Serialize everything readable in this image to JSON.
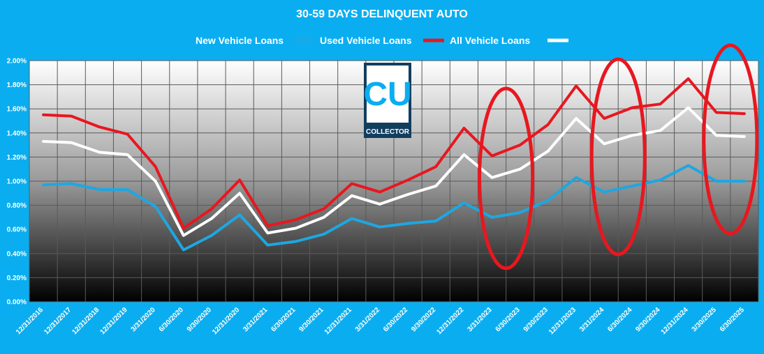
{
  "chart_data": {
    "type": "line",
    "title": "30-59 DAYS DELINQUENT AUTO",
    "legend_position": "top",
    "grid": true,
    "ylim": [
      0,
      2.0
    ],
    "y_ticks": [
      "0.00%",
      "0.20%",
      "0.40%",
      "0.60%",
      "0.80%",
      "1.00%",
      "1.20%",
      "1.40%",
      "1.60%",
      "1.80%",
      "2.00%"
    ],
    "categories": [
      "12/31/2016",
      "12/31/2017",
      "12/31/2018",
      "12/31/2019",
      "3/31/2020",
      "6/30/2020",
      "9/30/2020",
      "12/31/2020",
      "3/31/2021",
      "6/30/2021",
      "9/30/2021",
      "12/31/2021",
      "3/31/2022",
      "6/30/2022",
      "9/30/2022",
      "12/31/2022",
      "3/31/2023",
      "6/30/2023",
      "9/30/2023",
      "12/31/2023",
      "3/31/2024",
      "6/30/2024",
      "9/30/2024",
      "12/31/2024",
      "3/30/2025",
      "6/30/2025"
    ],
    "series": [
      {
        "name": "New Vehicle Loans",
        "color": "#1ea7e1",
        "values": [
          0.97,
          0.98,
          0.93,
          0.93,
          0.79,
          0.43,
          0.55,
          0.72,
          0.47,
          0.5,
          0.56,
          0.69,
          0.62,
          0.65,
          0.67,
          0.82,
          0.7,
          0.74,
          0.84,
          1.03,
          0.91,
          0.96,
          1.01,
          1.13,
          1.0,
          1.0
        ]
      },
      {
        "name": "Used Vehicle Loans",
        "color": "#e8171f",
        "values": [
          1.55,
          1.54,
          1.45,
          1.39,
          1.12,
          0.61,
          0.77,
          1.01,
          0.63,
          0.68,
          0.77,
          0.98,
          0.91,
          1.01,
          1.12,
          1.44,
          1.21,
          1.3,
          1.47,
          1.79,
          1.52,
          1.61,
          1.64,
          1.85,
          1.57,
          1.56
        ]
      },
      {
        "name": "All Vehicle Loans",
        "color": "#ffffff",
        "values": [
          1.33,
          1.32,
          1.24,
          1.22,
          1.0,
          0.55,
          0.69,
          0.9,
          0.57,
          0.61,
          0.7,
          0.88,
          0.81,
          0.89,
          0.96,
          1.22,
          1.03,
          1.1,
          1.25,
          1.52,
          1.31,
          1.38,
          1.42,
          1.61,
          1.38,
          1.37
        ]
      }
    ],
    "annotations": [
      {
        "type": "ellipse",
        "color": "#e8171f",
        "categories": [
          "3/31/2023",
          "6/30/2023"
        ]
      },
      {
        "type": "ellipse",
        "color": "#e8171f",
        "categories": [
          "3/31/2024",
          "6/30/2024"
        ]
      },
      {
        "type": "ellipse",
        "color": "#e8171f",
        "categories": [
          "3/30/2025",
          "6/30/2025"
        ]
      }
    ]
  },
  "logo": {
    "text": "CU",
    "subtext": "COLLECTOR",
    "color": "#0aaef0"
  }
}
